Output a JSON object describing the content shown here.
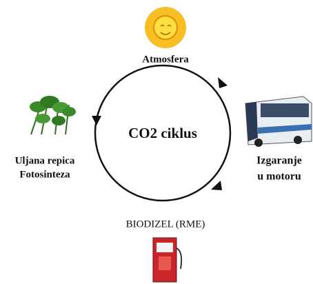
{
  "title": "CO2 ciklus",
  "nodes": [
    {
      "lines": [
        "Atmosfera"
      ]
    },
    {
      "lines": [
        "Uljana repica",
        "Fotosinteza"
      ]
    },
    {
      "lines": [
        "Izgaranje",
        "u motoru"
      ]
    },
    {
      "lines": [
        "BIODIZEL (RME)"
      ]
    }
  ]
}
